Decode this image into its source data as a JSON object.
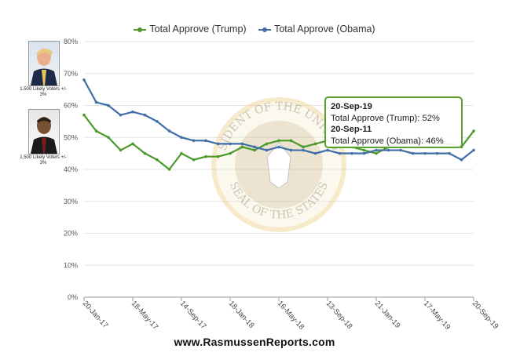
{
  "chart_data": {
    "type": "line",
    "title": "",
    "xlabel": "",
    "ylabel": "",
    "ylim": [
      0,
      80
    ],
    "y_ticks": [
      "0%",
      "10%",
      "20%",
      "30%",
      "40%",
      "50%",
      "60%",
      "70%",
      "80%"
    ],
    "x_ticks": [
      "20-Jan-17",
      "18-May-17",
      "14-Sep-17",
      "18-Jan-18",
      "16-May-18",
      "13-Sep-18",
      "21-Jan-19",
      "17-May-19",
      "20-Sep-19"
    ],
    "grid": "horizontal",
    "legend_position": "top-center",
    "series": [
      {
        "name": "Total Approve (Trump)",
        "color": "#4c9a2a",
        "x": [
          "20-Jan-17",
          "Feb-17",
          "Mar-17",
          "Apr-17",
          "18-May-17",
          "Jun-17",
          "Jul-17",
          "Aug-17",
          "14-Sep-17",
          "Oct-17",
          "Nov-17",
          "Dec-17",
          "18-Jan-18",
          "Feb-18",
          "Mar-18",
          "Apr-18",
          "16-May-18",
          "Jun-18",
          "Jul-18",
          "Aug-18",
          "13-Sep-18",
          "Oct-18",
          "Nov-18",
          "Dec-18",
          "21-Jan-19",
          "Feb-19",
          "Mar-19",
          "Apr-19",
          "17-May-19",
          "Jun-19",
          "Jul-19",
          "Aug-19",
          "20-Sep-19"
        ],
        "values": [
          57,
          52,
          50,
          46,
          48,
          45,
          43,
          40,
          45,
          43,
          44,
          44,
          45,
          47,
          46,
          48,
          49,
          49,
          47,
          48,
          49,
          47,
          47,
          46,
          45,
          47,
          48,
          48,
          49,
          48,
          48,
          47,
          52
        ]
      },
      {
        "name": "Total Approve (Obama)",
        "color": "#3f6ea8",
        "x": [
          "20-Jan-17",
          "Feb-17",
          "Mar-17",
          "Apr-17",
          "18-May-17",
          "Jun-17",
          "Jul-17",
          "Aug-17",
          "14-Sep-17",
          "Oct-17",
          "Nov-17",
          "Dec-17",
          "18-Jan-18",
          "Feb-18",
          "Mar-18",
          "Apr-18",
          "16-May-18",
          "Jun-18",
          "Jul-18",
          "Aug-18",
          "13-Sep-18",
          "Oct-18",
          "Nov-18",
          "Dec-18",
          "21-Jan-19",
          "Feb-19",
          "Mar-19",
          "Apr-19",
          "17-May-19",
          "Jun-19",
          "Jul-19",
          "Aug-19",
          "20-Sep-19"
        ],
        "values": [
          68,
          61,
          60,
          57,
          58,
          57,
          55,
          52,
          50,
          49,
          49,
          48,
          48,
          48,
          47,
          46,
          47,
          46,
          46,
          45,
          46,
          45,
          45,
          45,
          46,
          46,
          46,
          45,
          45,
          45,
          45,
          43,
          46
        ]
      }
    ]
  },
  "tooltip": {
    "date1": "20-Sep-19",
    "line1": "Total Approve (Trump): 52%",
    "date2": "20-Sep-11",
    "line2": "Total Approve (Obama): 46%"
  },
  "panels": {
    "trump_caption": "1,500 Likely Voters +/- 3%",
    "obama_caption": "1,500 Likely Voters +/- 3%"
  },
  "seal": {
    "text_top": "SIDENT OF THE UNITED",
    "text_bottom": "SEAL OF THE STATES"
  },
  "footer": "www.RasmussenReports.com"
}
